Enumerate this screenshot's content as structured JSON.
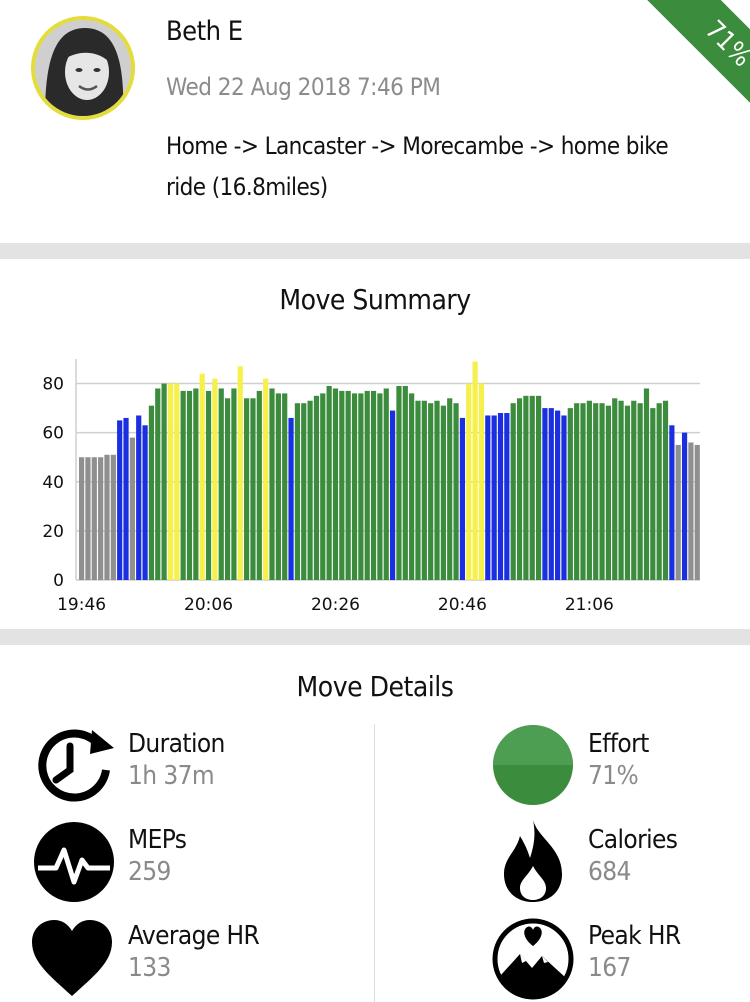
{
  "profile": {
    "name": "Beth E",
    "datetime": "Wed 22 Aug 2018 7:46 PM",
    "activity_title": "Home -> Lancaster -> Morecambe -> home bike ride (16.8miles)",
    "effort_badge": "71%"
  },
  "summary": {
    "title": "Move Summary"
  },
  "details": {
    "title": "Move Details",
    "items": [
      {
        "label": "Duration",
        "value": "1h 37m"
      },
      {
        "label": "MEPs",
        "value": "259"
      },
      {
        "label": "Average HR",
        "value": "133"
      },
      {
        "label": "Effort",
        "value": "71%"
      },
      {
        "label": "Calories",
        "value": "684"
      },
      {
        "label": "Peak HR",
        "value": "167"
      }
    ]
  },
  "colors": {
    "grey": "#8f8f8f",
    "blue": "#1a2fe0",
    "green": "#3c8c3e",
    "yellow": "#f5f04a",
    "accent": "#3c8c3e"
  },
  "chart_data": {
    "type": "bar",
    "xlabel": "",
    "ylabel": "",
    "ylim": [
      0,
      90
    ],
    "yticks": [
      0,
      20,
      40,
      60,
      80
    ],
    "xtick_labels": [
      "19:46",
      "20:06",
      "20:26",
      "20:46",
      "21:06"
    ],
    "xtick_index": [
      0,
      20,
      40,
      60,
      80
    ],
    "values": [
      50,
      50,
      50,
      50,
      51,
      51,
      65,
      66,
      58,
      67,
      63,
      71,
      78,
      80,
      80,
      80,
      77,
      77,
      78,
      84,
      77,
      82,
      78,
      74,
      78,
      87,
      74,
      74,
      77,
      82,
      78,
      76,
      76,
      66,
      72,
      72,
      73,
      75,
      76,
      79,
      78,
      77,
      77,
      76,
      76,
      77,
      77,
      76,
      78,
      69,
      79,
      79,
      76,
      73,
      73,
      72,
      73,
      71,
      74,
      72,
      66,
      80,
      89,
      80,
      67,
      67,
      68,
      68,
      72,
      74,
      75,
      75,
      75,
      70,
      70,
      69,
      67,
      70,
      72,
      72,
      73,
      72,
      72,
      71,
      74,
      73,
      71,
      73,
      72,
      78,
      70,
      72,
      73,
      63,
      55,
      60,
      56,
      55
    ],
    "zones": [
      "grey",
      "grey",
      "grey",
      "grey",
      "grey",
      "grey",
      "blue",
      "blue",
      "grey",
      "blue",
      "blue",
      "green",
      "green",
      "green",
      "yellow",
      "yellow",
      "green",
      "green",
      "green",
      "yellow",
      "green",
      "yellow",
      "green",
      "green",
      "green",
      "yellow",
      "green",
      "green",
      "green",
      "yellow",
      "green",
      "green",
      "green",
      "blue",
      "green",
      "green",
      "green",
      "green",
      "green",
      "green",
      "green",
      "green",
      "green",
      "green",
      "green",
      "green",
      "green",
      "green",
      "green",
      "blue",
      "green",
      "green",
      "green",
      "green",
      "green",
      "green",
      "green",
      "green",
      "green",
      "green",
      "blue",
      "yellow",
      "yellow",
      "yellow",
      "blue",
      "blue",
      "blue",
      "blue",
      "green",
      "green",
      "green",
      "green",
      "green",
      "blue",
      "blue",
      "blue",
      "blue",
      "green",
      "green",
      "green",
      "green",
      "green",
      "green",
      "green",
      "green",
      "green",
      "green",
      "green",
      "green",
      "green",
      "green",
      "green",
      "green",
      "blue",
      "grey",
      "blue",
      "grey",
      "grey"
    ]
  }
}
